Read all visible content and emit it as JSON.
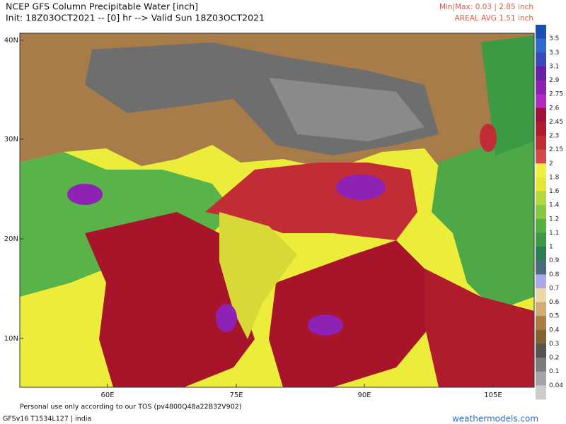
{
  "header": {
    "title": "NCEP GFS Column Precipitable Water [inch]",
    "subtitle": "Init: 18Z03OCT2021 -- [0] hr --> Valid Sun 18Z03OCT2021",
    "stats_line1": "Min|Max: 0.03 | 2.85 inch",
    "stats_line2": "AREAL AVG 1.51 inch"
  },
  "map": {
    "lat_labels": [
      "40N",
      "30N",
      "20N",
      "10N"
    ],
    "lon_labels": [
      "60E",
      "75E",
      "90E",
      "105E"
    ]
  },
  "colorbar": {
    "labels": [
      "3.5",
      "3.3",
      "3.1",
      "2.9",
      "2.75",
      "2.6",
      "2.45",
      "2.3",
      "2.15",
      "2",
      "1.8",
      "1.6",
      "1.4",
      "1.2",
      "1.1",
      "1",
      "0.9",
      "0.8",
      "0.7",
      "0.6",
      "0.5",
      "0.4",
      "0.3",
      "0.2",
      "0.1",
      "0.04"
    ],
    "colors": [
      "#1c4fb4",
      "#2f6ad2",
      "#3a4ab8",
      "#6a1fa8",
      "#8e22b4",
      "#b02cc0",
      "#a0103a",
      "#b01c2c",
      "#c22c34",
      "#d44a4a",
      "#f0f040",
      "#e6e636",
      "#b4d83c",
      "#86c840",
      "#56b040",
      "#3c9a44",
      "#2d7e56",
      "#4a6e80",
      "#a8a8e8",
      "#ecd8a4",
      "#d2ac74",
      "#ac7c44",
      "#846232",
      "#585450",
      "#7c7c7c",
      "#a4a4a4",
      "#cccccc"
    ]
  },
  "footer": {
    "tos": "Personal use only according to our TOS (pv4800Q48a22B32V902)",
    "model": "GFSv16 T1534L127 | india",
    "site": "weathermodels.com"
  }
}
